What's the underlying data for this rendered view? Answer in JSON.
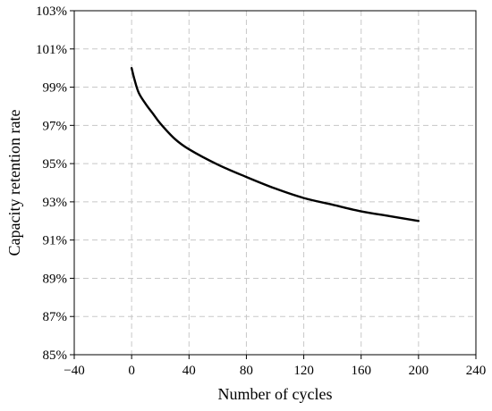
{
  "chart_data": {
    "type": "line",
    "title": "",
    "xlabel": "Number of cycles",
    "ylabel": "Capacity retention rate",
    "xlim": [
      -40,
      240
    ],
    "ylim": [
      85,
      103
    ],
    "x_ticks": [
      -40,
      0,
      40,
      80,
      120,
      160,
      200,
      240
    ],
    "x_tick_labels": [
      "−40",
      "0",
      "40",
      "80",
      "120",
      "160",
      "200",
      "240"
    ],
    "y_ticks": [
      85,
      87,
      89,
      91,
      93,
      95,
      97,
      99,
      101,
      103
    ],
    "y_tick_labels": [
      "85%",
      "87%",
      "89%",
      "91%",
      "93%",
      "95%",
      "97%",
      "99%",
      "101%",
      "103%"
    ],
    "grid": true,
    "legend": "none",
    "series": [
      {
        "color": "#000000",
        "x": [
          0,
          2,
          5,
          10,
          15,
          20,
          30,
          40,
          60,
          80,
          100,
          120,
          140,
          160,
          180,
          200
        ],
        "y": [
          100.0,
          99.4,
          98.7,
          98.1,
          97.6,
          97.1,
          96.3,
          95.75,
          94.95,
          94.3,
          93.7,
          93.2,
          92.85,
          92.5,
          92.25,
          92.0
        ]
      }
    ]
  }
}
